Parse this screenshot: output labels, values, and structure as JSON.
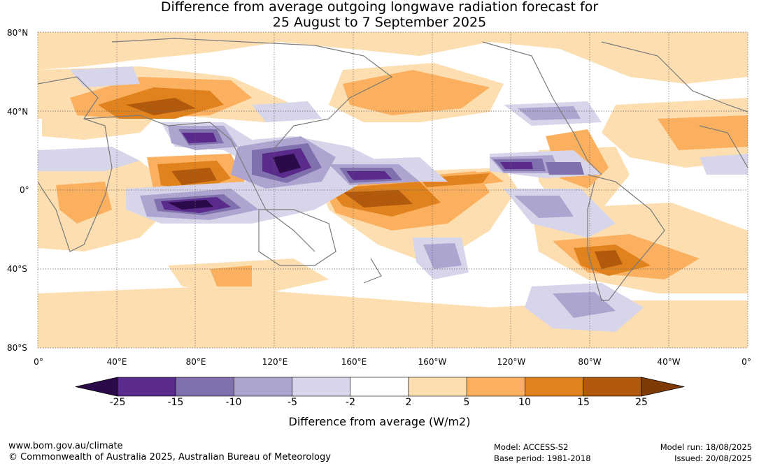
{
  "title_line1": "Difference from average outgoing longwave radiation forecast for",
  "title_line2": "25 August to 7 September 2025",
  "latitude_labels": [
    "80°N",
    "40°N",
    "0°",
    "40°S",
    "80°S"
  ],
  "longitude_labels": [
    "0°",
    "40°E",
    "80°E",
    "120°E",
    "160°E",
    "160°W",
    "120°W",
    "80°W",
    "40°W",
    "0°"
  ],
  "colorbar": {
    "title": "Difference from average (W/m2)",
    "tick_labels": [
      "-25",
      "-15",
      "-10",
      "-5",
      "-2",
      "2",
      "5",
      "10",
      "15",
      "25"
    ],
    "colors": [
      "#2b0a4a",
      "#5a2a8c",
      "#8070ad",
      "#ada5d0",
      "#d7d5ea",
      "#ffffff",
      "#fddeb1",
      "#fbb060",
      "#e0821d",
      "#b15a0e",
      "#7f3a05"
    ]
  },
  "footer": {
    "website": "www.bom.gov.au/climate",
    "copyright": "© Commonwealth of Australia 2025, Australian Bureau of Meteorology",
    "model": "Model: ACCESS-S2",
    "base_period": "Base period: 1981-2018",
    "model_run": "Model run: 18/08/2025",
    "issued": "Issued: 20/08/2025"
  }
}
